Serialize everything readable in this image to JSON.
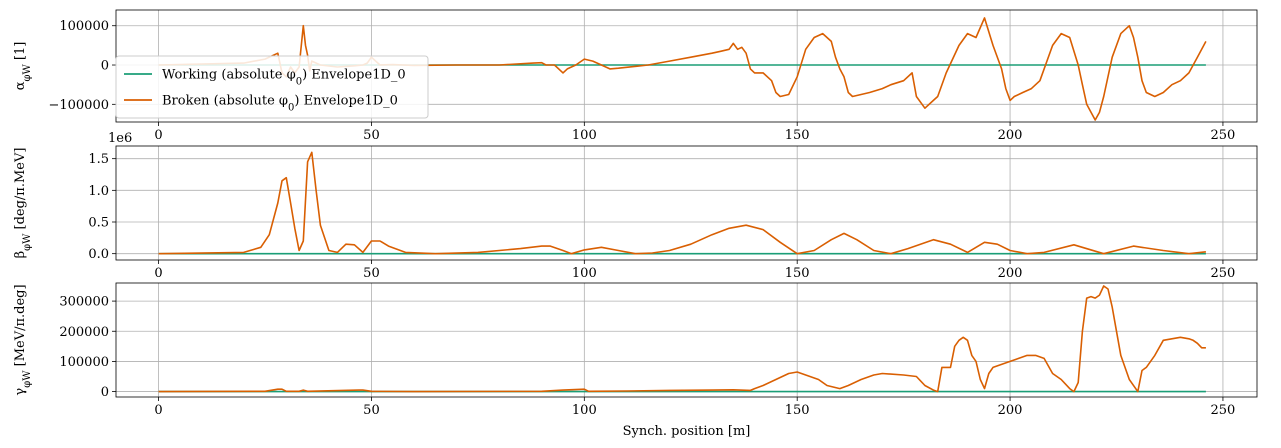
{
  "figure": {
    "colors": {
      "working": "#1b9e77",
      "broken": "#d95f02"
    }
  },
  "chart_data": [
    {
      "type": "line",
      "ylabel": "α_φW [1]",
      "xlim": [
        -10,
        258
      ],
      "ylim": [
        -145000,
        140000
      ],
      "xticks": [
        0,
        50,
        100,
        150,
        200,
        250
      ],
      "xtick_labels": [
        "0",
        "50",
        "100",
        "150",
        "200",
        "250"
      ],
      "yticks": [
        -100000,
        0,
        100000
      ],
      "ytick_labels": [
        "−100000",
        "0",
        "100000"
      ],
      "grid": true,
      "legend": "lower-left",
      "series": [
        {
          "name": "Working (absolute φ0) Envelope1D_0",
          "color": "#1b9e77",
          "x": [
            0,
            246
          ],
          "y": [
            0,
            0
          ]
        },
        {
          "name": "Broken (absolute φ0) Envelope1D_0",
          "color": "#d95f02",
          "x": [
            0,
            20,
            25,
            28,
            29,
            30,
            31,
            32,
            33,
            34,
            34.5,
            35,
            35.5,
            36,
            38,
            42,
            46,
            48,
            49,
            50,
            52,
            55,
            60,
            70,
            80,
            88,
            90,
            91,
            93,
            95,
            96,
            98,
            100,
            102,
            104,
            106,
            108,
            115,
            120,
            125,
            130,
            132,
            134,
            135,
            136,
            137,
            138,
            139,
            140,
            141,
            142,
            144,
            145,
            146,
            148,
            150,
            152,
            154,
            156,
            158,
            159,
            160,
            161,
            162,
            163,
            165,
            167,
            170,
            172,
            175,
            177,
            178,
            180,
            182,
            183,
            185,
            188,
            190,
            192,
            194,
            196,
            198,
            199,
            200,
            201,
            203,
            205,
            207,
            210,
            212,
            214,
            216,
            217,
            218,
            219,
            220,
            221,
            222,
            224,
            226,
            228,
            229,
            230,
            231,
            232,
            234,
            236,
            238,
            240,
            242,
            244,
            246
          ],
          "y": [
            0,
            5000,
            15000,
            30000,
            -20000,
            -30000,
            -5000,
            -20000,
            -5000,
            100000,
            50000,
            25000,
            -15000,
            10000,
            0,
            -5000,
            -2000,
            0,
            5000,
            20000,
            0,
            1000,
            -1000,
            0,
            0,
            5000,
            6000,
            0,
            0,
            -20000,
            -10000,
            0,
            15000,
            10000,
            0,
            -10000,
            -8000,
            0,
            10000,
            20000,
            30000,
            35000,
            40000,
            55000,
            40000,
            45000,
            30000,
            -10000,
            -20000,
            -20000,
            -20000,
            -40000,
            -70000,
            -80000,
            -75000,
            -30000,
            40000,
            70000,
            80000,
            60000,
            20000,
            -10000,
            -30000,
            -70000,
            -80000,
            -75000,
            -70000,
            -60000,
            -50000,
            -40000,
            -20000,
            -80000,
            -110000,
            -90000,
            -80000,
            -20000,
            50000,
            80000,
            70000,
            120000,
            50000,
            -10000,
            -60000,
            -90000,
            -80000,
            -70000,
            -60000,
            -40000,
            50000,
            80000,
            70000,
            0,
            -50000,
            -100000,
            -120000,
            -140000,
            -120000,
            -80000,
            20000,
            80000,
            100000,
            70000,
            20000,
            -40000,
            -70000,
            -80000,
            -70000,
            -50000,
            -40000,
            -20000,
            20000,
            60000
          ]
        }
      ]
    },
    {
      "type": "line",
      "ylabel": "β_φW [deg/π.MeV]",
      "offset_label": "1e6",
      "xlim": [
        -10,
        258
      ],
      "ylim": [
        -0.1,
        1.7
      ],
      "xticks": [
        0,
        50,
        100,
        150,
        200,
        250
      ],
      "xtick_labels": [
        "0",
        "50",
        "100",
        "150",
        "200",
        "250"
      ],
      "yticks": [
        0,
        0.5,
        1.0,
        1.5
      ],
      "ytick_labels": [
        "0.0",
        "0.5",
        "1.0",
        "1.5"
      ],
      "grid": true,
      "series": [
        {
          "name": "Working",
          "color": "#1b9e77",
          "x": [
            0,
            246
          ],
          "y": [
            0,
            0
          ]
        },
        {
          "name": "Broken",
          "color": "#d95f02",
          "x": [
            0,
            20,
            24,
            26,
            28,
            29,
            30,
            31,
            32,
            33,
            34,
            35,
            36,
            37,
            38,
            40,
            42,
            44,
            46,
            48,
            50,
            52,
            54,
            58,
            65,
            75,
            85,
            90,
            92,
            95,
            97,
            100,
            104,
            108,
            112,
            116,
            120,
            125,
            130,
            134,
            138,
            142,
            146,
            150,
            154,
            158,
            161,
            164,
            168,
            172,
            176,
            182,
            186,
            190,
            194,
            197,
            200,
            204,
            208,
            215,
            222,
            229,
            236,
            242,
            246
          ],
          "y": [
            0,
            0.02,
            0.1,
            0.3,
            0.8,
            1.15,
            1.2,
            0.8,
            0.4,
            0.05,
            0.2,
            1.45,
            1.6,
            1.0,
            0.45,
            0.05,
            0.02,
            0.15,
            0.14,
            0.02,
            0.2,
            0.2,
            0.12,
            0.02,
            0.0,
            0.02,
            0.08,
            0.12,
            0.12,
            0.05,
            0.0,
            0.06,
            0.1,
            0.05,
            0.0,
            0.01,
            0.05,
            0.15,
            0.3,
            0.4,
            0.45,
            0.38,
            0.18,
            0.0,
            0.05,
            0.22,
            0.32,
            0.22,
            0.05,
            0.0,
            0.08,
            0.22,
            0.15,
            0.02,
            0.18,
            0.15,
            0.05,
            0.0,
            0.02,
            0.14,
            0.0,
            0.12,
            0.05,
            0.0,
            0.03
          ]
        }
      ]
    },
    {
      "type": "line",
      "ylabel": "γ_φW [MeV/π.deg]",
      "xlabel": "Synch. position [m]",
      "xlim": [
        -10,
        258
      ],
      "ylim": [
        -18000,
        360000
      ],
      "xticks": [
        0,
        50,
        100,
        150,
        200,
        250
      ],
      "xtick_labels": [
        "0",
        "50",
        "100",
        "150",
        "200",
        "250"
      ],
      "yticks": [
        0,
        100000,
        200000,
        300000
      ],
      "ytick_labels": [
        "0",
        "100000",
        "200000",
        "300000"
      ],
      "grid": true,
      "series": [
        {
          "name": "Working",
          "color": "#1b9e77",
          "x": [
            0,
            246
          ],
          "y": [
            0,
            0
          ]
        },
        {
          "name": "Broken",
          "color": "#d95f02",
          "x": [
            0,
            25,
            28,
            29,
            30,
            33,
            34,
            35,
            47,
            48,
            50,
            60,
            90,
            95,
            100,
            101,
            110,
            120,
            130,
            135,
            139,
            140,
            142,
            145,
            148,
            150,
            155,
            157,
            160,
            162,
            165,
            168,
            170,
            175,
            178,
            180,
            182,
            183,
            184,
            186,
            187,
            188,
            189,
            190,
            191,
            192,
            193,
            194,
            195,
            196,
            200,
            202,
            204,
            206,
            208,
            210,
            212,
            214,
            215,
            216,
            217,
            218,
            219,
            220,
            221,
            222,
            223,
            224,
            225,
            226,
            228,
            230,
            231,
            232,
            234,
            236,
            240,
            242,
            243,
            244,
            245,
            246
          ],
          "y": [
            0,
            1000,
            8000,
            8000,
            1000,
            1000,
            5000,
            1000,
            5000,
            5000,
            1000,
            0,
            1000,
            5000,
            8000,
            1000,
            2000,
            4000,
            5000,
            6000,
            4000,
            10000,
            20000,
            40000,
            60000,
            65000,
            40000,
            20000,
            10000,
            20000,
            40000,
            55000,
            60000,
            55000,
            50000,
            20000,
            5000,
            0,
            80000,
            80000,
            150000,
            170000,
            180000,
            170000,
            120000,
            100000,
            40000,
            10000,
            60000,
            80000,
            100000,
            110000,
            120000,
            120000,
            110000,
            60000,
            40000,
            10000,
            0,
            30000,
            200000,
            310000,
            315000,
            310000,
            320000,
            350000,
            340000,
            280000,
            200000,
            120000,
            40000,
            0,
            70000,
            80000,
            120000,
            170000,
            180000,
            175000,
            170000,
            160000,
            145000,
            145000
          ]
        }
      ]
    }
  ]
}
